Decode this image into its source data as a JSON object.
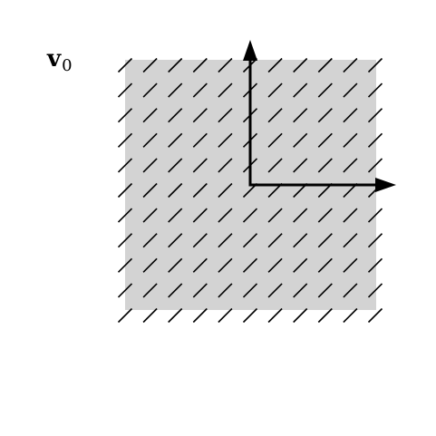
{
  "label": {
    "symbol": "v",
    "subscript": "0"
  },
  "colors": {
    "region_fill": "#d3d3d3",
    "stroke": "#000000",
    "background": "#ffffff"
  },
  "field": {
    "columns": 11,
    "rows": 11,
    "direction_degrees": 45
  },
  "axes": {
    "count": 2,
    "directions": [
      "up",
      "right"
    ]
  }
}
